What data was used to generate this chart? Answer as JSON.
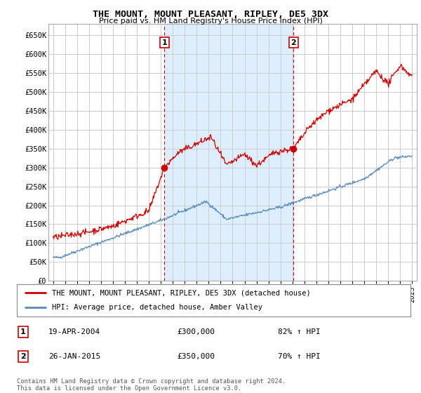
{
  "title": "THE MOUNT, MOUNT PLEASANT, RIPLEY, DE5 3DX",
  "subtitle": "Price paid vs. HM Land Registry's House Price Index (HPI)",
  "ylim": [
    0,
    680000
  ],
  "ytick_vals": [
    0,
    50000,
    100000,
    150000,
    200000,
    250000,
    300000,
    350000,
    400000,
    450000,
    500000,
    550000,
    600000,
    650000
  ],
  "ytick_labels": [
    "£0",
    "£50K",
    "£100K",
    "£150K",
    "£200K",
    "£250K",
    "£300K",
    "£350K",
    "£400K",
    "£450K",
    "£500K",
    "£550K",
    "£600K",
    "£650K"
  ],
  "xlim_min": 1994.6,
  "xlim_max": 2025.4,
  "legend_entry1": "THE MOUNT, MOUNT PLEASANT, RIPLEY, DE5 3DX (detached house)",
  "legend_entry2": "HPI: Average price, detached house, Amber Valley",
  "annotation1_date": "19-APR-2004",
  "annotation1_price": "£300,000",
  "annotation1_hpi": "82% ↑ HPI",
  "annotation2_date": "26-JAN-2015",
  "annotation2_price": "£350,000",
  "annotation2_hpi": "70% ↑ HPI",
  "copyright_text": "Contains HM Land Registry data © Crown copyright and database right 2024.\nThis data is licensed under the Open Government Licence v3.0.",
  "line1_color": "#cc0000",
  "line2_color": "#5588bb",
  "shade_color": "#ddeeff",
  "grid_color": "#cccccc",
  "background_color": "#ffffff",
  "sale1_year": 2004.3,
  "sale2_year": 2015.1,
  "sale1_y": 300000,
  "sale2_y": 350000
}
